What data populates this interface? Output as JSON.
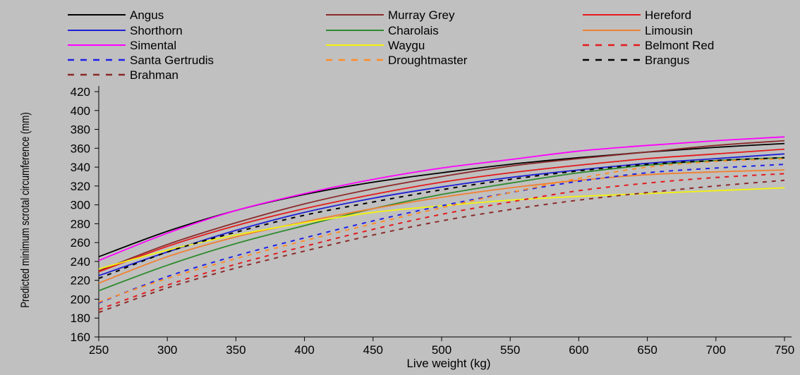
{
  "chart_data": {
    "type": "line",
    "title": "",
    "xlabel": "Live weight (kg)",
    "ylabel": "Predicted minimum scrotal circumference (mm)",
    "xlim": [
      250,
      750
    ],
    "ylim": [
      160,
      420
    ],
    "xticks": [
      250,
      300,
      350,
      400,
      450,
      500,
      550,
      600,
      650,
      700,
      750
    ],
    "yticks": [
      160,
      180,
      200,
      220,
      240,
      260,
      280,
      300,
      320,
      340,
      360,
      380,
      400,
      420
    ],
    "grid": false,
    "legend_position": "top",
    "x": [
      250,
      300,
      350,
      400,
      450,
      500,
      550,
      600,
      650,
      700,
      750
    ],
    "series": [
      {
        "name": "Angus",
        "color": "#000000",
        "dash": "solid",
        "values": [
          245,
          272,
          294,
          311,
          324,
          334,
          343,
          350,
          356,
          361,
          365
        ]
      },
      {
        "name": "Murray Grey",
        "color": "#8b2a2a",
        "dash": "solid",
        "values": [
          230,
          258,
          281,
          301,
          317,
          330,
          341,
          349,
          356,
          363,
          368
        ]
      },
      {
        "name": "Hereford",
        "color": "#e41a1c",
        "dash": "solid",
        "values": [
          229,
          256,
          278,
          296,
          311,
          324,
          334,
          342,
          349,
          354,
          359
        ]
      },
      {
        "name": "Shorthorn",
        "color": "#1f1fd6",
        "dash": "solid",
        "values": [
          225,
          250,
          273,
          292,
          307,
          319,
          329,
          337,
          344,
          349,
          354
        ]
      },
      {
        "name": "Charolais",
        "color": "#2e8b2e",
        "dash": "solid",
        "values": [
          209,
          236,
          259,
          278,
          296,
          311,
          323,
          334,
          342,
          347,
          350
        ]
      },
      {
        "name": "Limousin",
        "color": "#f08030",
        "dash": "solid",
        "values": [
          217,
          245,
          266,
          282,
          296,
          308,
          318,
          326,
          332,
          335,
          337
        ]
      },
      {
        "name": "Simental",
        "color": "#ff00ff",
        "dash": "solid",
        "values": [
          241,
          270,
          294,
          312,
          327,
          339,
          348,
          357,
          363,
          368,
          372
        ]
      },
      {
        "name": "Waygu",
        "color": "#f4f40a",
        "dash": "solid",
        "values": [
          232,
          252,
          268,
          281,
          292,
          299,
          305,
          309,
          312,
          315,
          318
        ]
      },
      {
        "name": "Belmont Red",
        "color": "#e41a1c",
        "dash": "dashed",
        "values": [
          189,
          215,
          237,
          256,
          274,
          290,
          303,
          315,
          323,
          329,
          333
        ]
      },
      {
        "name": "Santa Gertrudis",
        "color": "#2020e8",
        "dash": "dashed",
        "values": [
          196,
          224,
          246,
          265,
          283,
          299,
          313,
          325,
          334,
          339,
          343
        ]
      },
      {
        "name": "Droughtmaster",
        "color": "#ff8c28",
        "dash": "dashed",
        "values": [
          197,
          222,
          243,
          262,
          280,
          297,
          313,
          328,
          340,
          346,
          349
        ]
      },
      {
        "name": "Brangus",
        "color": "#000000",
        "dash": "dashed",
        "values": [
          222,
          250,
          271,
          289,
          303,
          316,
          327,
          336,
          343,
          347,
          350
        ]
      },
      {
        "name": "Brahman",
        "color": "#8b2a2a",
        "dash": "dashed",
        "values": [
          186,
          212,
          233,
          251,
          268,
          283,
          295,
          305,
          313,
          320,
          326
        ]
      }
    ]
  }
}
